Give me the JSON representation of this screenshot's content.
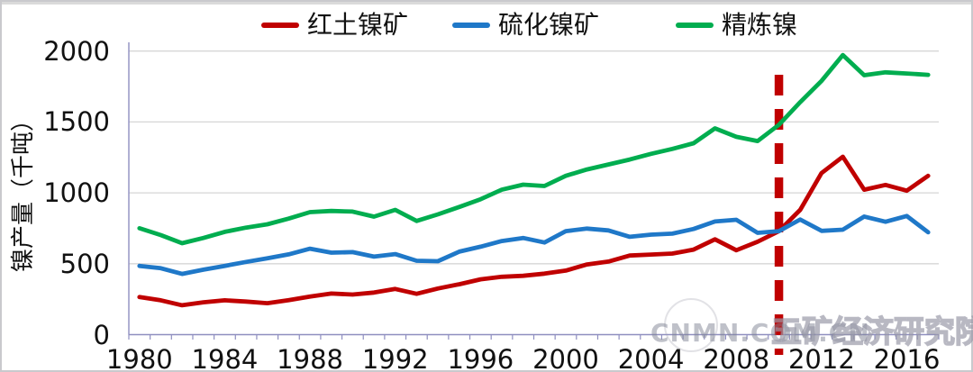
{
  "watermark": {
    "site": "CNMN.COM.CN",
    "org": "五矿经济研究院"
  },
  "chart_data": {
    "type": "line",
    "title": "",
    "xlabel": "",
    "ylabel": "镍产量（千吨）",
    "ylim": [
      0,
      2000
    ],
    "yticks": [
      0,
      500,
      1000,
      1500,
      2000
    ],
    "xtick_labels": [
      "1980",
      "1984",
      "1988",
      "1992",
      "1996",
      "2000",
      "2004",
      "2008",
      "2012",
      "2016"
    ],
    "x": [
      1980,
      1981,
      1982,
      1983,
      1984,
      1985,
      1986,
      1987,
      1988,
      1989,
      1990,
      1991,
      1992,
      1993,
      1994,
      1995,
      1996,
      1997,
      1998,
      1999,
      2000,
      2001,
      2002,
      2003,
      2004,
      2005,
      2006,
      2007,
      2008,
      2009,
      2010,
      2011,
      2012,
      2013,
      2014,
      2015,
      2016,
      2017
    ],
    "series": [
      {
        "name": "红土镍矿",
        "color": "#C00000",
        "values": [
          265,
          242,
          207,
          228,
          242,
          233,
          222,
          243,
          268,
          290,
          283,
          297,
          322,
          288,
          325,
          355,
          390,
          408,
          415,
          430,
          452,
          495,
          515,
          558,
          565,
          572,
          600,
          672,
          595,
          655,
          730,
          880,
          1140,
          1255,
          1022,
          1056,
          1015,
          1120
        ]
      },
      {
        "name": "硫化镍矿",
        "color": "#1F78C8",
        "values": [
          485,
          468,
          428,
          458,
          485,
          513,
          538,
          566,
          606,
          578,
          582,
          550,
          568,
          521,
          518,
          585,
          620,
          660,
          682,
          650,
          730,
          748,
          735,
          690,
          705,
          712,
          745,
          798,
          810,
          718,
          730,
          812,
          732,
          740,
          833,
          796,
          837,
          722
        ]
      },
      {
        "name": "精炼镍",
        "color": "#00AD4F",
        "values": [
          750,
          702,
          645,
          682,
          725,
          755,
          778,
          818,
          864,
          872,
          868,
          832,
          880,
          802,
          848,
          900,
          955,
          1022,
          1058,
          1048,
          1120,
          1165,
          1200,
          1235,
          1275,
          1310,
          1350,
          1455,
          1395,
          1365,
          1480,
          1640,
          1790,
          1972,
          1830,
          1850,
          1842,
          1832
        ]
      }
    ],
    "vline": {
      "x": 2010,
      "style": "dashed",
      "color": "#C00000"
    },
    "grid": "horizontal",
    "legend_position": "top-center",
    "axis_color": "#8F8FC0",
    "grid_color": "#D6D6D6"
  }
}
